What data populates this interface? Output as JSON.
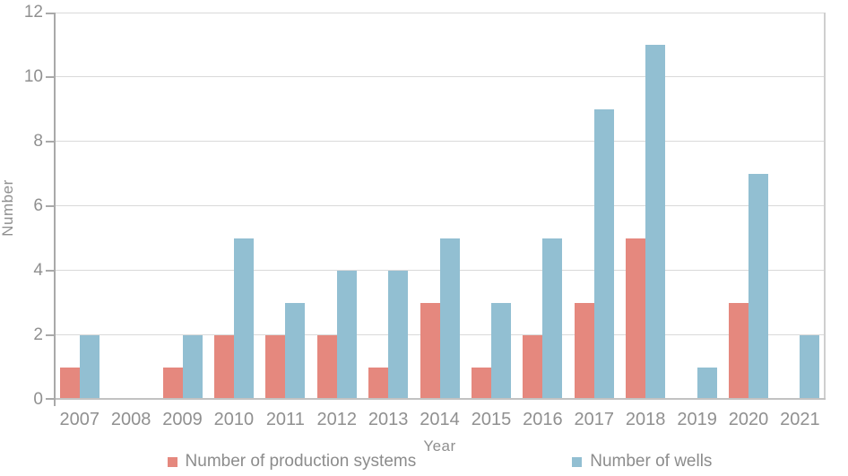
{
  "chart_data": {
    "type": "bar",
    "title": "",
    "xlabel": "Year",
    "ylabel": "Number",
    "ylim": [
      0,
      12
    ],
    "ytick_step": 2,
    "grid": true,
    "legend_position": "bottom",
    "categories": [
      "2007",
      "2008",
      "2009",
      "2010",
      "2011",
      "2012",
      "2013",
      "2014",
      "2015",
      "2016",
      "2017",
      "2018",
      "2019",
      "2020",
      "2021"
    ],
    "series": [
      {
        "name": "Number of production systems",
        "key": "production-systems",
        "color": "#e5887e",
        "values": [
          1,
          0,
          1,
          2,
          2,
          2,
          1,
          3,
          1,
          2,
          3,
          5,
          0,
          3,
          0
        ]
      },
      {
        "name": "Number of wells",
        "key": "wells",
        "color": "#92bfd2",
        "values": [
          2,
          0,
          2,
          5,
          3,
          4,
          4,
          5,
          3,
          5,
          9,
          11,
          1,
          7,
          2
        ]
      }
    ]
  },
  "colors": {
    "gridline": "#d9d9d9",
    "axis_line": "#a9a9a9",
    "tick_text": "#909090"
  }
}
